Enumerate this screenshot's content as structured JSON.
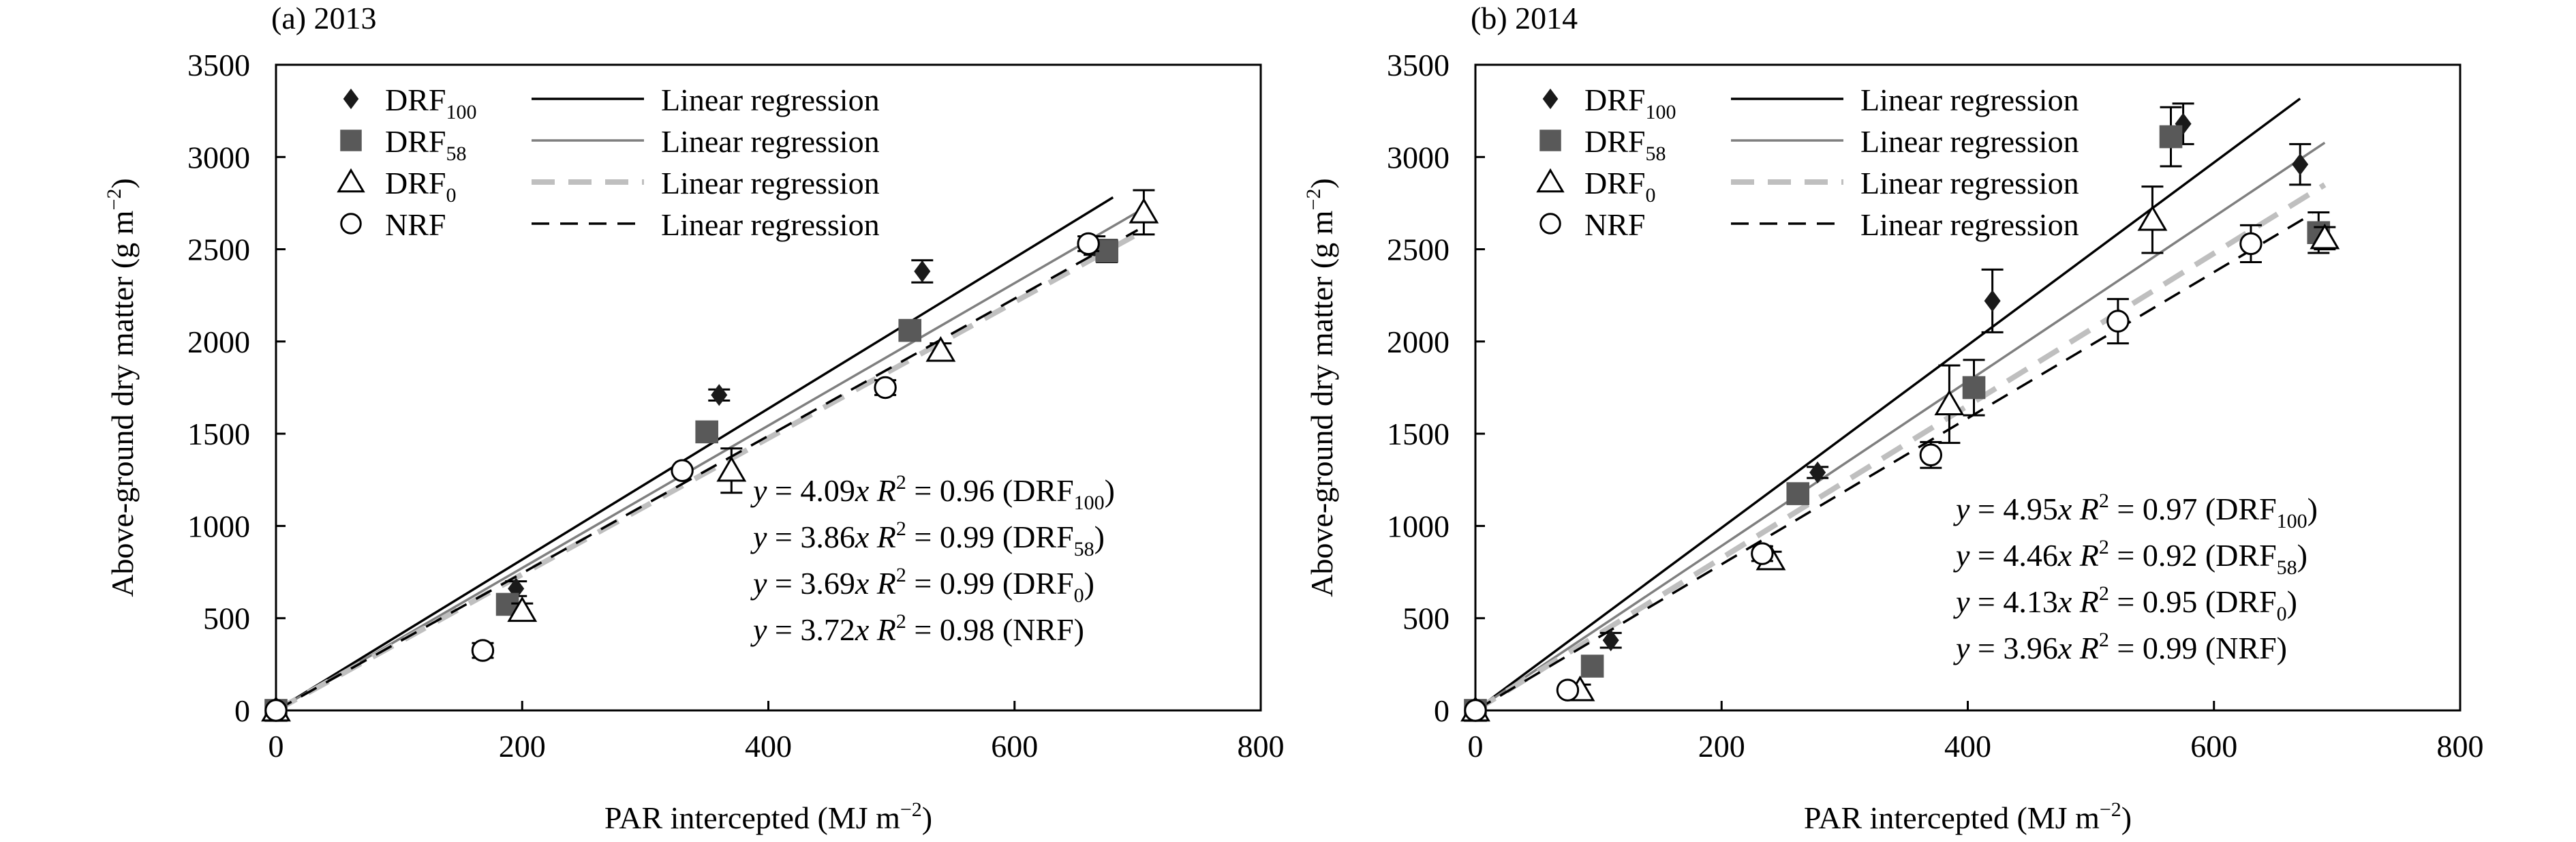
{
  "chart_data": [
    {
      "type": "scatter",
      "panel_label": "(a) 2013",
      "xlabel": "PAR intercepted (MJ m",
      "xlabel_sup": "−2",
      "xlabel_tail": ")",
      "ylabel": "Above-ground dry matter (g m",
      "ylabel_sup": "−2",
      "ylabel_tail": ")",
      "xlim": [
        0,
        800
      ],
      "ylim": [
        0,
        3500
      ],
      "xticks": [
        0,
        200,
        400,
        600,
        800
      ],
      "yticks": [
        0,
        500,
        1000,
        1500,
        2000,
        2500,
        3000,
        3500
      ],
      "grid": false,
      "legend_position": "top-left",
      "series": [
        {
          "name": "DRF",
          "sub": "100",
          "marker": "diamond",
          "color": "#1a1a1a",
          "x": [
            0,
            195,
            360,
            525,
            665
          ],
          "y": [
            0,
            660,
            1710,
            2380,
            2520
          ],
          "err": [
            0,
            40,
            30,
            60,
            50
          ],
          "fit": {
            "slope": 4.09,
            "r2": "0.96",
            "line": "solid",
            "color": "#000000",
            "x_end": 680,
            "label_lead": "y",
            "label_eq": " = 4.09",
            "label_var": "x",
            "label_r": "R",
            "label_r2": "2",
            "label_val": " = 0.96 (DRF",
            "label_sub": "100",
            "label_close": ")"
          },
          "legend_fit": "Linear regression"
        },
        {
          "name": "DRF",
          "sub": "58",
          "marker": "square",
          "color": "#595959",
          "x": [
            0,
            188,
            350,
            515,
            675
          ],
          "y": [
            0,
            575,
            1510,
            2060,
            2490
          ],
          "err": [
            0,
            0,
            0,
            0,
            60
          ],
          "fit": {
            "slope": 3.86,
            "r2": "0.99",
            "line": "solid",
            "color": "#7f7f7f",
            "x_end": 700,
            "label_lead": "y",
            "label_eq": " = 3.86",
            "label_var": "x",
            "label_r": "R",
            "label_r2": "2",
            "label_val": " = 0.99 (DRF",
            "label_sub": "58",
            "label_close": ")"
          },
          "legend_fit": "Linear regression"
        },
        {
          "name": "DRF",
          "sub": "0",
          "marker": "triangle",
          "color": "#000000",
          "x": [
            0,
            200,
            370,
            540,
            705
          ],
          "y": [
            0,
            540,
            1300,
            1950,
            2700
          ],
          "err": [
            0,
            40,
            120,
            40,
            120
          ],
          "fit": {
            "slope": 3.69,
            "r2": "0.99",
            "line": "dashed-thick",
            "color": "#bfbfbf",
            "x_end": 705,
            "label_lead": "y",
            "label_eq": " = 3.69",
            "label_var": "x",
            "label_r": "R",
            "label_r2": "2",
            "label_val": " = 0.99 (DRF",
            "label_sub": "0",
            "label_close": ")"
          },
          "legend_fit": "Linear regression"
        },
        {
          "name": "NRF",
          "sub": "",
          "marker": "circle",
          "color": "#000000",
          "x": [
            0,
            168,
            330,
            495,
            660
          ],
          "y": [
            0,
            325,
            1300,
            1750,
            2530
          ],
          "err": [
            0,
            40,
            0,
            40,
            40
          ],
          "fit": {
            "slope": 3.72,
            "r2": "0.98",
            "line": "dashed",
            "color": "#000000",
            "x_end": 700,
            "label_lead": "y",
            "label_eq": " = 3.72",
            "label_var": "x",
            "label_r": "R",
            "label_r2": "2",
            "label_val": " = 0.98 (NRF",
            "label_sub": "",
            "label_close": ")"
          },
          "legend_fit": "Linear regression"
        }
      ]
    },
    {
      "type": "scatter",
      "panel_label": "(b) 2014",
      "xlabel": "PAR intercepted (MJ m",
      "xlabel_sup": "−2",
      "xlabel_tail": ")",
      "ylabel": "Above-ground dry matter (g m",
      "ylabel_sup": "−2",
      "ylabel_tail": ")",
      "xlim": [
        0,
        800
      ],
      "ylim": [
        0,
        3500
      ],
      "xticks": [
        0,
        200,
        400,
        600,
        800
      ],
      "yticks": [
        0,
        500,
        1000,
        1500,
        2000,
        2500,
        3000,
        3500
      ],
      "grid": false,
      "legend_position": "top-left",
      "series": [
        {
          "name": "DRF",
          "sub": "100",
          "marker": "diamond",
          "color": "#1a1a1a",
          "x": [
            0,
            110,
            278,
            420,
            575,
            670
          ],
          "y": [
            0,
            380,
            1290,
            2220,
            3180,
            2960
          ],
          "err": [
            0,
            40,
            30,
            170,
            110,
            110
          ],
          "fit": {
            "slope": 4.95,
            "r2": "0.97",
            "line": "solid",
            "color": "#000000",
            "x_end": 670,
            "label_lead": "y",
            "label_eq": " = 4.95",
            "label_var": "x",
            "label_r": "R",
            "label_r2": "2",
            "label_val": " = 0.97 (DRF",
            "label_sub": "100",
            "label_close": ")"
          },
          "legend_fit": "Linear regression"
        },
        {
          "name": "DRF",
          "sub": "58",
          "marker": "square",
          "color": "#595959",
          "x": [
            0,
            95,
            262,
            405,
            565,
            685
          ],
          "y": [
            0,
            240,
            1175,
            1750,
            3110,
            2590
          ],
          "err": [
            0,
            0,
            40,
            150,
            160,
            110
          ],
          "fit": {
            "slope": 4.46,
            "r2": "0.92",
            "line": "solid",
            "color": "#7f7f7f",
            "x_end": 690,
            "label_lead": "y",
            "label_eq": " = 4.46",
            "label_var": "x",
            "label_r": "R",
            "label_r2": "2",
            "label_val": " = 0.92 (DRF",
            "label_sub": "58",
            "label_close": ")"
          },
          "legend_fit": "Linear regression"
        },
        {
          "name": "DRF",
          "sub": "0",
          "marker": "triangle",
          "color": "#000000",
          "x": [
            0,
            85,
            240,
            385,
            550,
            690
          ],
          "y": [
            0,
            110,
            820,
            1660,
            2660,
            2560
          ],
          "err": [
            0,
            30,
            40,
            210,
            180,
            60
          ],
          "fit": {
            "slope": 4.13,
            "r2": "0.95",
            "line": "dashed-thick",
            "color": "#bfbfbf",
            "x_end": 690,
            "label_lead": "y",
            "label_eq": " = 4.13",
            "label_var": "x",
            "label_r": "R",
            "label_r2": "2",
            "label_val": " = 0.95 (DRF",
            "label_sub": "0",
            "label_close": ")"
          },
          "legend_fit": "Linear regression"
        },
        {
          "name": "NRF",
          "sub": "",
          "marker": "circle",
          "color": "#000000",
          "x": [
            0,
            75,
            233,
            370,
            522,
            630
          ],
          "y": [
            0,
            110,
            850,
            1385,
            2110,
            2530
          ],
          "err": [
            0,
            0,
            40,
            70,
            120,
            100
          ],
          "fit": {
            "slope": 3.96,
            "r2": "0.99",
            "line": "dashed",
            "color": "#000000",
            "x_end": 680,
            "label_lead": "y",
            "label_eq": " = 3.96",
            "label_var": "x",
            "label_r": "R",
            "label_r2": "2",
            "label_val": "  = 0.99 (NRF",
            "label_sub": "",
            "label_close": ")"
          },
          "legend_fit": "Linear regression"
        }
      ]
    }
  ]
}
